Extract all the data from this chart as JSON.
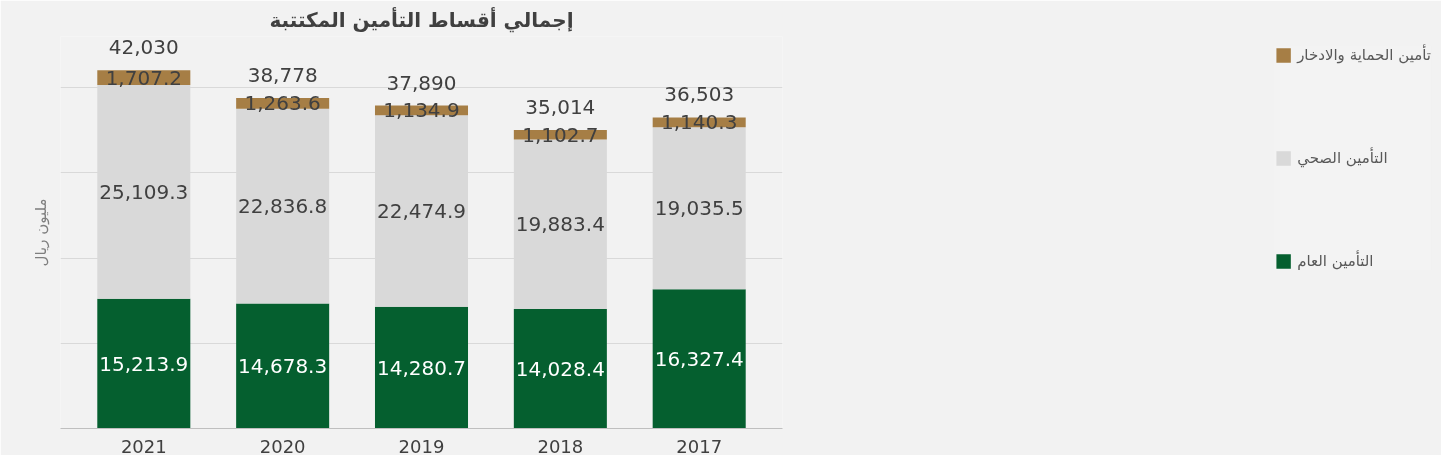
{
  "chart_data": {
    "type": "bar",
    "title": "إجمالي أقساط التأمين المكتتبة",
    "ylabel": "مليون ريال",
    "categories": [
      "2021",
      "2020",
      "2019",
      "2018",
      "2017"
    ],
    "stacked": true,
    "series": [
      {
        "name": "التأمين العام",
        "color": "#055f2f",
        "values": [
          15213.9,
          14678.3,
          14280.7,
          14028.4,
          16327.4
        ],
        "value_labels": [
          "15,213.9",
          "14,678.3",
          "14,280.7",
          "14,028.4",
          "16,327.4"
        ]
      },
      {
        "name": "التأمين الصحي",
        "color": "#d9d9d9",
        "values": [
          25109.3,
          22836.8,
          22474.9,
          19883.4,
          19035.5
        ],
        "value_labels": [
          "25,109.3",
          "22,836.8",
          "22,474.9",
          "19,883.4",
          "19,035.5"
        ]
      },
      {
        "name": "تأمين الحماية والادخار",
        "color": "#a67e45",
        "values": [
          1707.2,
          1263.6,
          1134.9,
          1102.7,
          1140.3
        ],
        "value_labels": [
          "1,707.2",
          "1,263.6",
          "1,134.9",
          "1,102.7",
          "1,140.3"
        ]
      }
    ],
    "totals": [
      "42,030",
      "38,778",
      "37,890",
      "35,014",
      "36,503"
    ],
    "ylim": [
      0,
      46000
    ],
    "yticks": [
      {
        "value": 0,
        "label": null
      },
      {
        "value": 10000,
        "label": null
      },
      {
        "value": 20000,
        "label": null
      },
      {
        "value": 30000,
        "label": null
      },
      {
        "value": 40000,
        "label": null
      }
    ],
    "grid": "y",
    "legend": "right",
    "tick_labels": "x"
  }
}
